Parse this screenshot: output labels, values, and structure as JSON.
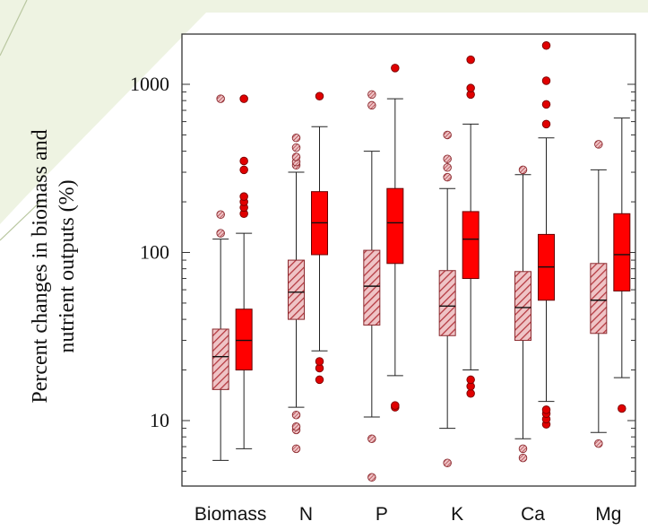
{
  "chart_data": {
    "type": "box",
    "title": "",
    "xlabel": "",
    "ylabel_lines": [
      "Percent changes in biomass and",
      "nutrient outputs (%)"
    ],
    "y_scale": "log",
    "ylim": [
      4,
      2000
    ],
    "y_ticks": [
      10,
      100,
      1000
    ],
    "y_tick_labels": [
      "10",
      "100",
      "1000"
    ],
    "grid": false,
    "categories": [
      "Biomass",
      "N",
      "P",
      "K",
      "Ca",
      "Mg"
    ],
    "series": [
      {
        "style": "hatched",
        "fill": "#e7a0a3",
        "stroke": "#8b2a2f",
        "boxes": [
          {
            "min": 5.8,
            "q1": 15.3,
            "median": 24,
            "q3": 35,
            "max": 120,
            "outliers": [
              130,
              168,
              820
            ]
          },
          {
            "min": 12,
            "q1": 40,
            "median": 58,
            "q3": 90,
            "max": 300,
            "outliers": [
              6.8,
              8.8,
              9.2,
              10.8,
              330,
              345,
              370,
              420,
              480
            ]
          },
          {
            "min": 10.5,
            "q1": 37,
            "median": 63,
            "q3": 103,
            "max": 400,
            "outliers": [
              4.6,
              7.8,
              750,
              870
            ]
          },
          {
            "min": 9,
            "q1": 32,
            "median": 48,
            "q3": 78,
            "max": 240,
            "outliers": [
              5.6,
              280,
              320,
              360,
              500
            ]
          },
          {
            "min": 7.8,
            "q1": 30,
            "median": 47,
            "q3": 77,
            "max": 290,
            "outliers": [
              6,
              6.8,
              310
            ]
          },
          {
            "min": 8.5,
            "q1": 33,
            "median": 52,
            "q3": 86,
            "max": 310,
            "outliers": [
              7.3,
              440
            ]
          }
        ]
      },
      {
        "style": "solid",
        "fill": "#ff0000",
        "stroke": "#660000",
        "boxes": [
          {
            "min": 6.8,
            "q1": 20,
            "median": 30,
            "q3": 46,
            "max": 130,
            "outliers": [
              170,
              185,
              200,
              215,
              310,
              350,
              820
            ]
          },
          {
            "min": 26,
            "q1": 97,
            "median": 150,
            "q3": 230,
            "max": 560,
            "outliers": [
              17.5,
              20.5,
              22.5,
              850
            ]
          },
          {
            "min": 18.5,
            "q1": 86,
            "median": 150,
            "q3": 240,
            "max": 820,
            "outliers": [
              12,
              12.3,
              1250
            ]
          },
          {
            "min": 20,
            "q1": 70,
            "median": 120,
            "q3": 175,
            "max": 580,
            "outliers": [
              14.5,
              16,
              17.5,
              870,
              950,
              1400
            ]
          },
          {
            "min": 13,
            "q1": 52,
            "median": 82,
            "q3": 128,
            "max": 480,
            "outliers": [
              9.5,
              10.2,
              11,
              11.6,
              580,
              760,
              1050,
              1700
            ]
          },
          {
            "min": 18,
            "q1": 59,
            "median": 97,
            "q3": 170,
            "max": 630,
            "outliers": [
              11.8
            ]
          }
        ]
      }
    ]
  }
}
